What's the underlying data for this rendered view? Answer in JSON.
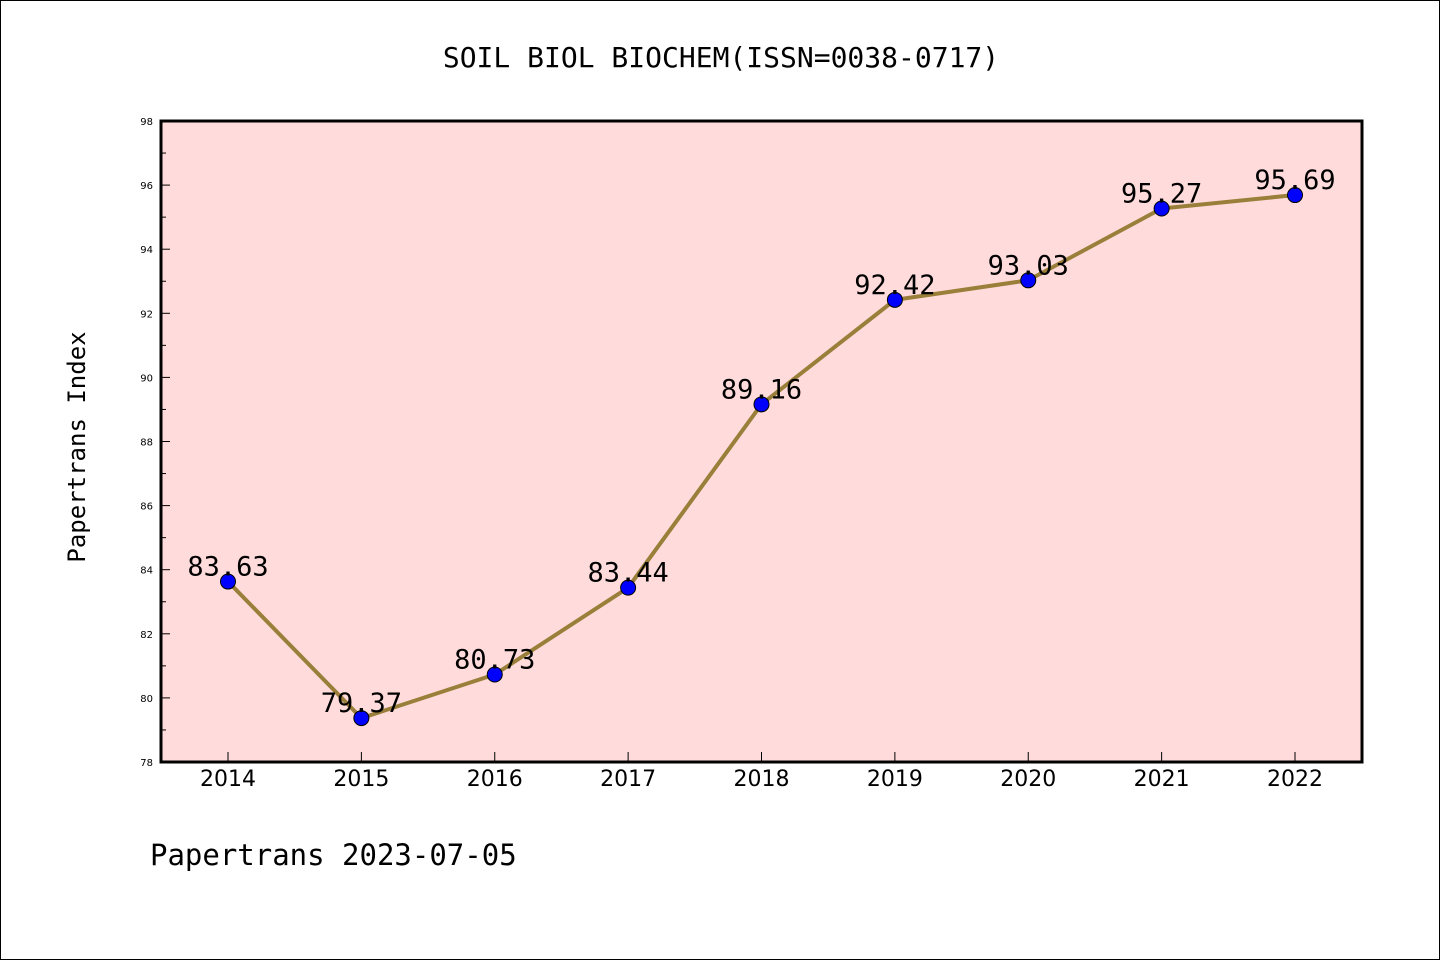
{
  "chart_data": {
    "type": "line",
    "title": "SOIL BIOL BIOCHEM(ISSN=0038-0717)",
    "xlabel": "",
    "ylabel": "Papertrans Index",
    "categories": [
      "2014",
      "2015",
      "2016",
      "2017",
      "2018",
      "2019",
      "2020",
      "2021",
      "2022"
    ],
    "series": [
      {
        "values": [
          83.63,
          79.37,
          80.73,
          83.44,
          89.16,
          92.42,
          93.03,
          95.27,
          95.69
        ],
        "labels": [
          "83.63",
          "79.37",
          "80.73",
          "83.44",
          "89.16",
          "92.42",
          "93.03",
          "95.27",
          "95.69"
        ]
      }
    ],
    "ylim": [
      78,
      98
    ],
    "yticks": [
      "78",
      "80",
      "82",
      "84",
      "86",
      "88",
      "90",
      "92",
      "94",
      "96",
      "98"
    ],
    "grid": false,
    "legend": "none",
    "footer": "Papertrans 2023-07-05",
    "colors": {
      "plot_background": "#ffdcdb",
      "line": "#9a7f3a",
      "marker": "#0000ff",
      "axis": "#000000"
    }
  }
}
